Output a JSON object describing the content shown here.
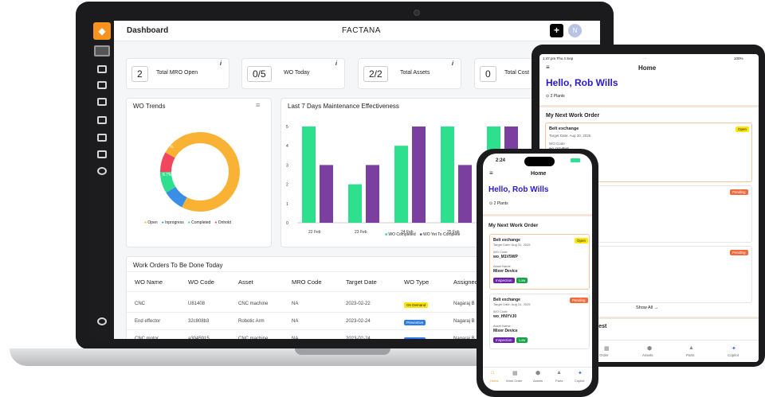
{
  "laptop": {
    "title": "Dashboard",
    "brand": "FACTANA",
    "plus": "+",
    "avatar": "N",
    "kpis": [
      {
        "value": "2",
        "label": "Total MRO Open",
        "info": "i"
      },
      {
        "value": "0/5",
        "label": "WO Today",
        "info": "i"
      },
      {
        "value": "2/2",
        "label": "Total Assets",
        "info": "i"
      },
      {
        "value": "0",
        "label": "Total Cost",
        "info": "i"
      }
    ],
    "trend": {
      "title": "WO Trends",
      "menu": "≡",
      "labels": {
        "open": "",
        "inprog": "8.7%",
        "comp": "8.7%",
        "hold": "8.3%"
      },
      "legend": [
        "Open",
        "Inprogress",
        "Completed",
        "Onhold"
      ]
    },
    "eff": {
      "title": "Last 7 Days Maintenance Effectiveness",
      "legend": [
        "WO Completed",
        "WO Yet To Complete"
      ]
    },
    "wotable": {
      "title": "Work Orders To Be Done Today",
      "headers": [
        "WO Name",
        "WO Code",
        "Asset",
        "MRO Code",
        "Target Date",
        "WO Type",
        "Assigned"
      ],
      "rows": [
        [
          "CNC",
          "U81408",
          "CNC machine",
          "NA",
          "2023-02-22",
          "On Demand",
          "Nagaraj B"
        ],
        [
          "End effector",
          "32c808b3",
          "Robotic Arm",
          "NA",
          "2023-02-24",
          "Preventive",
          "Nagaraj B"
        ],
        [
          "CNC motor",
          "a3045915",
          "CNC machine",
          "NA",
          "2023-02-24",
          "Preventive",
          "Nagaraj B"
        ]
      ]
    }
  },
  "chart_data": [
    {
      "type": "pie",
      "title": "WO Trends",
      "categories": [
        "Open",
        "Inprogress",
        "Completed",
        "Onhold"
      ],
      "values": [
        75,
        8.7,
        8.7,
        8.3
      ],
      "colors": [
        "#f9b233",
        "#3a8ee6",
        "#2ee08e",
        "#f0475c"
      ]
    },
    {
      "type": "bar",
      "title": "Last 7 Days Maintenance Effectiveness",
      "categories": [
        "22 Feb",
        "23 Feb",
        "24 Feb",
        "25 Feb",
        "26 Feb"
      ],
      "series": [
        {
          "name": "WO Completed",
          "values": [
            5,
            2,
            4,
            5,
            5
          ],
          "color": "#2ee08e"
        },
        {
          "name": "WO Yet To Complete",
          "values": [
            3,
            3,
            5,
            3,
            5
          ],
          "color": "#7b3fa0"
        }
      ],
      "ylim": [
        0,
        5
      ],
      "yticks": [
        "0",
        "1",
        "2",
        "3",
        "4",
        "5"
      ]
    }
  ],
  "ipad": {
    "status_left": "1:47 pm  Thu 4 Sep",
    "status_dots": "···",
    "status_right": "100%",
    "home": "Home",
    "hello": "Hello, Rob Wills",
    "plants": "2 Plants",
    "next": "My Next Work Order",
    "card1": {
      "name": "Belt exchange",
      "status": "Open",
      "date": "Target Date:  Aug 30, 2025",
      "code_label": "WO Code",
      "code": "wo_m1v5wp"
    },
    "pending": "Pending",
    "show_all": "Show All →",
    "request": "uest",
    "tabs": [
      "rk Order",
      "Assets",
      "Parts",
      "Copilot"
    ]
  },
  "phone": {
    "time": "2:24",
    "home": "Home",
    "hello": "Hello, Rob Wills",
    "plants": "2 Plants",
    "next": "My Next Work Order",
    "cards": [
      {
        "name": "Belt exchange",
        "status": "Open",
        "date": "Target Date: Aug 31, 2025",
        "code_label": "WO Code",
        "code": "wo_M1V5WP",
        "asset_label": "Asset Name",
        "asset": "Mixer Device",
        "tags": [
          "Inspection",
          "Low"
        ]
      },
      {
        "name": "Belt exchange",
        "status": "Pending",
        "date": "Target Date: Aug 31, 2025",
        "code_label": "WO Code",
        "code": "wo_HNYVJ0",
        "asset_label": "Asset Name",
        "asset": "Mixer Device",
        "tags": [
          "Inspection",
          "Low"
        ]
      }
    ],
    "tabs": [
      "Home",
      "Work Order",
      "Assets",
      "Parts",
      "Copilot"
    ]
  }
}
